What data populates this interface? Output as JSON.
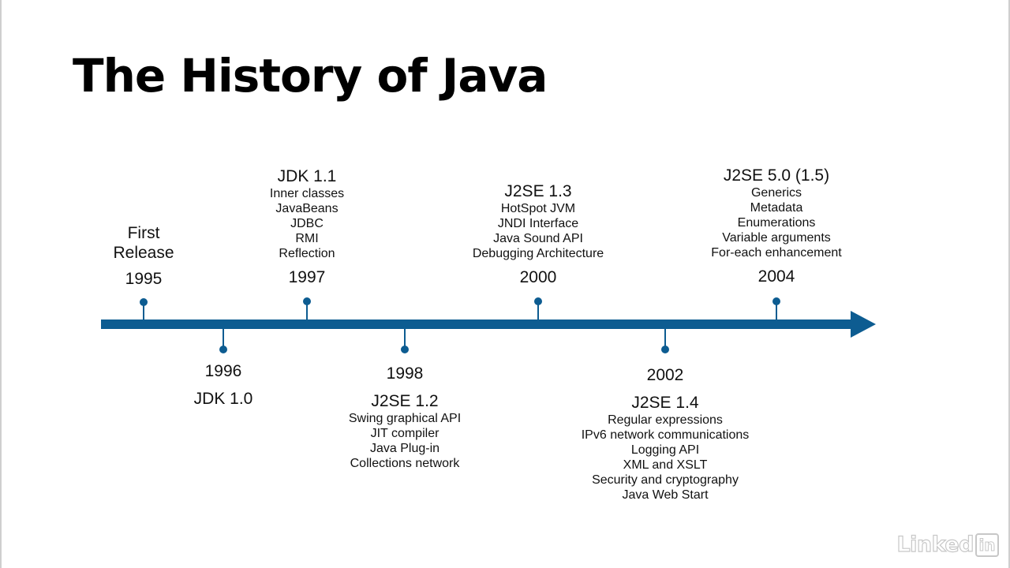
{
  "title": "The History of Java",
  "colors": {
    "timeline": "#0d5c91",
    "text": "#111111"
  },
  "milestones": [
    {
      "year": "1995",
      "label": "First",
      "label2": "Release",
      "features": []
    },
    {
      "year": "1996",
      "label": "JDK 1.0",
      "features": []
    },
    {
      "year": "1997",
      "label": "JDK 1.1",
      "features": [
        "Inner classes",
        "JavaBeans",
        "JDBC",
        "RMI",
        "Reflection"
      ]
    },
    {
      "year": "1998",
      "label": "J2SE 1.2",
      "features": [
        "Swing graphical API",
        "JIT compiler",
        "Java Plug-in",
        "Collections network"
      ]
    },
    {
      "year": "2000",
      "label": "J2SE 1.3",
      "features": [
        "HotSpot JVM",
        "JNDI Interface",
        "Java Sound API",
        "Debugging Architecture"
      ]
    },
    {
      "year": "2002",
      "label": "J2SE 1.4",
      "features": [
        "Regular expressions",
        "IPv6 network communications",
        "Logging API",
        "XML and XSLT",
        "Security and cryptography",
        "Java Web Start"
      ]
    },
    {
      "year": "2004",
      "label": "J2SE 5.0 (1.5)",
      "features": [
        "Generics",
        "Metadata",
        "Enumerations",
        "Variable arguments",
        "For-each enhancement"
      ]
    }
  ],
  "watermark": {
    "text": "Linked",
    "badge": "in"
  }
}
